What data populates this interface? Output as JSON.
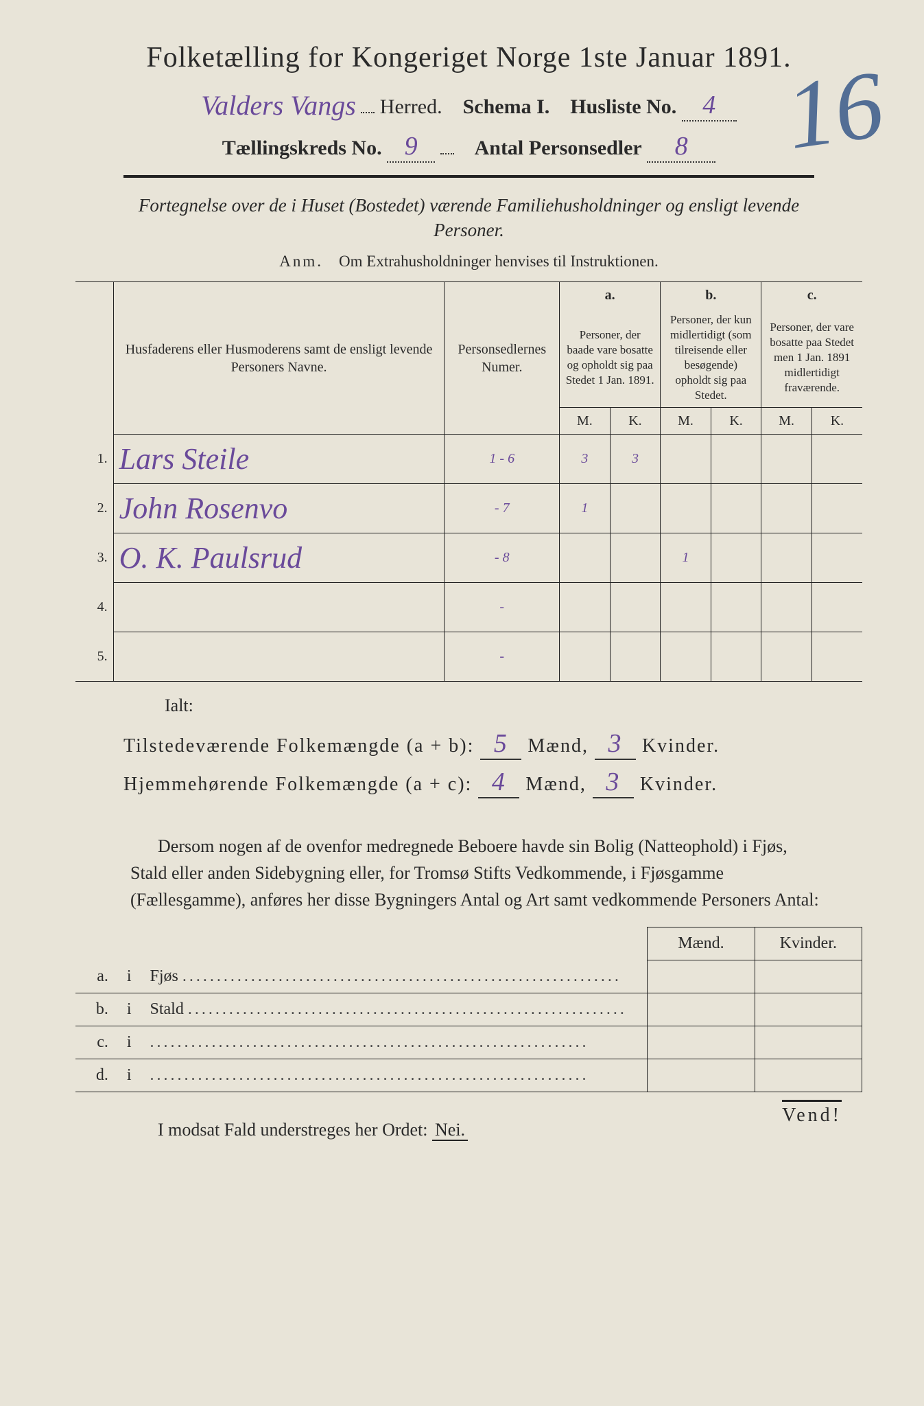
{
  "title": "Folketælling for Kongeriget Norge 1ste Januar 1891.",
  "line2": {
    "herred_prefix_hand": "Valders Vangs",
    "herred_label": "Herred.",
    "schema_label": "Schema I.",
    "husliste_label": "Husliste No.",
    "husliste_value": "4"
  },
  "line3": {
    "kreds_label": "Tællingskreds No.",
    "kreds_value": "9",
    "antal_label": "Antal Personsedler",
    "antal_value": "8"
  },
  "big_mark": "16",
  "subtitle": "Fortegnelse over de i Huset (Bostedet) værende Familiehusholdninger og ensligt levende Personer.",
  "anm_label": "Anm.",
  "anm_text": "Om Extrahusholdninger henvises til Instruktionen.",
  "table": {
    "col_name_header": "Husfaderens eller Husmoderens samt de ensligt levende Personers Navne.",
    "col_pers_header": "Personsedlernes Numer.",
    "col_a_label": "a.",
    "col_a_text": "Personer, der baade vare bosatte og opholdt sig paa Stedet 1 Jan. 1891.",
    "col_b_label": "b.",
    "col_b_text": "Personer, der kun midlertidigt (som tilreisende eller besøgende) opholdt sig paa Stedet.",
    "col_c_label": "c.",
    "col_c_text": "Personer, der vare bosatte paa Stedet men 1 Jan. 1891 midlertidigt fraværende.",
    "mk_m": "M.",
    "mk_k": "K.",
    "rows": [
      {
        "n": "1.",
        "name": "Lars Steile",
        "pers": "1 - 6",
        "a_m": "3",
        "a_k": "3",
        "b_m": "",
        "b_k": "",
        "c_m": "",
        "c_k": ""
      },
      {
        "n": "2.",
        "name": "John Rosenvo",
        "pers": "- 7",
        "a_m": "1",
        "a_k": "",
        "b_m": "",
        "b_k": "",
        "c_m": "",
        "c_k": ""
      },
      {
        "n": "3.",
        "name": "O. K. Paulsrud",
        "pers": "- 8",
        "a_m": "",
        "a_k": "",
        "b_m": "1",
        "b_k": "",
        "c_m": "",
        "c_k": ""
      },
      {
        "n": "4.",
        "name": "",
        "pers": "-",
        "a_m": "",
        "a_k": "",
        "b_m": "",
        "b_k": "",
        "c_m": "",
        "c_k": ""
      },
      {
        "n": "5.",
        "name": "",
        "pers": "-",
        "a_m": "",
        "a_k": "",
        "b_m": "",
        "b_k": "",
        "c_m": "",
        "c_k": ""
      }
    ]
  },
  "ialt": "Ialt:",
  "totals": {
    "tilstede_label": "Tilstedeværende Folkemængde (a + b):",
    "hjemme_label": "Hjemmehørende Folkemængde (a + c):",
    "maend": "Mænd,",
    "kvinder": "Kvinder.",
    "tilstede_m": "5",
    "tilstede_k": "3",
    "hjemme_m": "4",
    "hjemme_k": "3"
  },
  "paragraph": "Dersom nogen af de ovenfor medregnede Beboere havde sin Bolig (Natteophold) i Fjøs, Stald eller anden Sidebygning eller, for Tromsø Stifts Vedkommende, i Fjøsgamme (Fællesgamme), anføres her disse Bygningers Antal og Art samt vedkommende Personers Antal:",
  "bygning": {
    "maend": "Mænd.",
    "kvinder": "Kvinder.",
    "rows": [
      {
        "l": "a.",
        "i": "i",
        "t": "Fjøs"
      },
      {
        "l": "b.",
        "i": "i",
        "t": "Stald"
      },
      {
        "l": "c.",
        "i": "i",
        "t": ""
      },
      {
        "l": "d.",
        "i": "i",
        "t": ""
      }
    ]
  },
  "nei_line_pre": "I modsat Fald understreges her Ordet: ",
  "nei": "Nei.",
  "vend": "Vend!"
}
